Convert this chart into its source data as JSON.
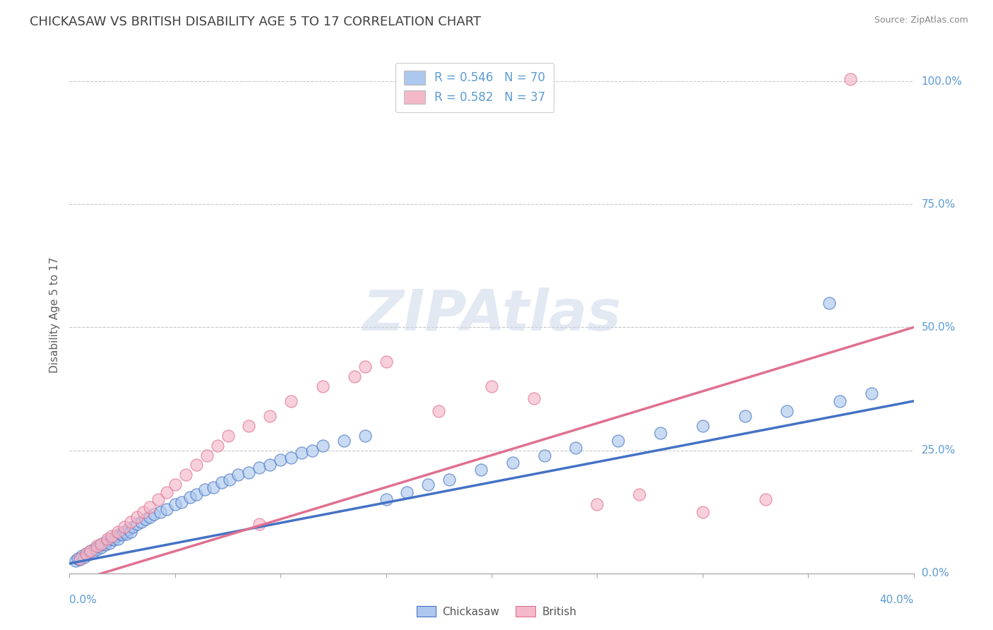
{
  "title": "CHICKASAW VS BRITISH DISABILITY AGE 5 TO 17 CORRELATION CHART",
  "source": "Source: ZipAtlas.com",
  "ylabel": "Disability Age 5 to 17",
  "xlim": [
    0.0,
    40.0
  ],
  "ylim": [
    0.0,
    100.0
  ],
  "chickasaw_R": 0.546,
  "chickasaw_N": 70,
  "british_R": 0.582,
  "british_N": 37,
  "chickasaw_color": "#adc8ee",
  "chickasaw_line_color": "#4472c4",
  "british_color": "#f4b8c8",
  "british_line_color": "#e07090",
  "background_color": "#ffffff",
  "title_color": "#404040",
  "axis_label_color": "#5b9bd5",
  "grid_color": "#c8c8c8",
  "ytick_vals": [
    0,
    25,
    50,
    75,
    100
  ],
  "ytick_labels": [
    "0.0%",
    "25.0%",
    "50.0%",
    "75.0%",
    "100.0%"
  ],
  "chick_line_x0": 0,
  "chick_line_y0": 2.0,
  "chick_line_x1": 40,
  "chick_line_y1": 35.0,
  "brit_line_x0": 0,
  "brit_line_y0": -2.0,
  "brit_line_x1": 40,
  "brit_line_y1": 50.0,
  "chickasaw_x": [
    0.3,
    0.4,
    0.5,
    0.6,
    0.7,
    0.8,
    0.9,
    1.0,
    1.1,
    1.2,
    1.3,
    1.4,
    1.5,
    1.6,
    1.7,
    1.8,
    1.9,
    2.0,
    2.1,
    2.2,
    2.3,
    2.4,
    2.5,
    2.6,
    2.7,
    2.8,
    2.9,
    3.0,
    3.2,
    3.4,
    3.6,
    3.8,
    4.0,
    4.3,
    4.6,
    5.0,
    5.3,
    5.7,
    6.0,
    6.4,
    6.8,
    7.2,
    7.6,
    8.0,
    8.5,
    9.0,
    9.5,
    10.0,
    10.5,
    11.0,
    11.5,
    12.0,
    13.0,
    14.0,
    15.0,
    16.0,
    17.0,
    18.0,
    19.5,
    21.0,
    22.5,
    24.0,
    26.0,
    28.0,
    30.0,
    32.0,
    34.0,
    36.5,
    38.0,
    36.0
  ],
  "chickasaw_y": [
    2.5,
    3.0,
    2.8,
    3.5,
    3.2,
    4.0,
    3.8,
    4.5,
    4.2,
    5.0,
    4.8,
    5.5,
    5.2,
    6.0,
    5.8,
    6.5,
    6.2,
    7.0,
    6.8,
    7.5,
    7.0,
    8.0,
    7.8,
    8.5,
    8.0,
    9.0,
    8.5,
    9.5,
    10.0,
    10.5,
    11.0,
    11.5,
    12.0,
    12.5,
    13.0,
    14.0,
    14.5,
    15.5,
    16.0,
    17.0,
    17.5,
    18.5,
    19.0,
    20.0,
    20.5,
    21.5,
    22.0,
    23.0,
    23.5,
    24.5,
    25.0,
    26.0,
    27.0,
    28.0,
    15.0,
    16.5,
    18.0,
    19.0,
    21.0,
    22.5,
    24.0,
    25.5,
    27.0,
    28.5,
    30.0,
    32.0,
    33.0,
    35.0,
    36.5,
    55.0
  ],
  "british_x": [
    0.5,
    0.8,
    1.0,
    1.3,
    1.5,
    1.8,
    2.0,
    2.3,
    2.6,
    2.9,
    3.2,
    3.5,
    3.8,
    4.2,
    4.6,
    5.0,
    5.5,
    6.0,
    6.5,
    7.0,
    7.5,
    8.5,
    9.5,
    10.5,
    12.0,
    13.5,
    15.0,
    17.5,
    20.0,
    22.0,
    25.0,
    27.0,
    30.0,
    33.0,
    37.0,
    14.0,
    9.0
  ],
  "british_y": [
    3.0,
    4.0,
    4.5,
    5.5,
    6.0,
    7.0,
    7.5,
    8.5,
    9.5,
    10.5,
    11.5,
    12.5,
    13.5,
    15.0,
    16.5,
    18.0,
    20.0,
    22.0,
    24.0,
    26.0,
    28.0,
    30.0,
    32.0,
    35.0,
    38.0,
    40.0,
    43.0,
    33.0,
    38.0,
    35.5,
    14.0,
    16.0,
    12.5,
    15.0,
    100.5,
    42.0,
    10.0
  ]
}
